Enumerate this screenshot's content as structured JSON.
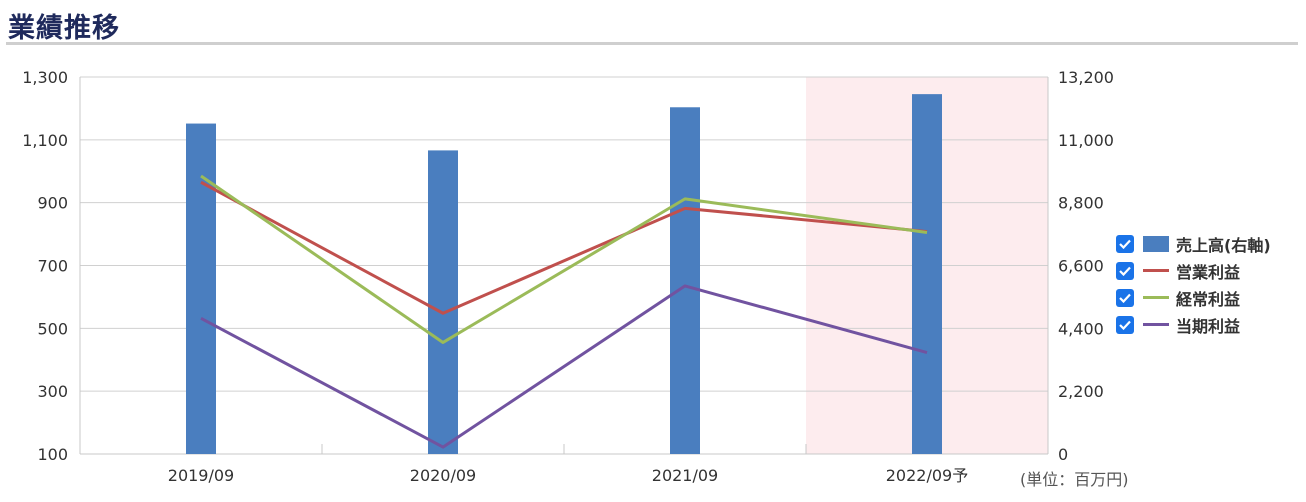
{
  "page": {
    "title": "業績推移",
    "unit_label": "(単位：百万円)"
  },
  "colors": {
    "title": "#1f2a5c",
    "bar": "#4a7ebf",
    "operating": "#c0504d",
    "ordinary": "#9bbb59",
    "net": "#7153a0",
    "forecast_band": "#fdecee",
    "checkbox": "#1a73e8"
  },
  "legend": [
    {
      "label": "売上高(右軸)",
      "kind": "bar",
      "color_key": "bar",
      "checked": true
    },
    {
      "label": "営業利益",
      "kind": "line",
      "color_key": "operating",
      "checked": true
    },
    {
      "label": "経常利益",
      "kind": "line",
      "color_key": "ordinary",
      "checked": true
    },
    {
      "label": "当期利益",
      "kind": "line",
      "color_key": "net",
      "checked": true
    }
  ],
  "chart_data": {
    "type": "bar",
    "categories": [
      "2019/09",
      "2020/09",
      "2021/09",
      "2022/09予"
    ],
    "forecast_category": "2022/09予",
    "left_axis": {
      "min": 100,
      "max": 1300,
      "ticks": [
        100,
        300,
        500,
        700,
        900,
        1100,
        1300
      ],
      "tick_labels": [
        "100",
        "300",
        "500",
        "700",
        "900",
        "1,100",
        "1,300"
      ]
    },
    "right_axis": {
      "min": 0,
      "max": 13200,
      "ticks": [
        0,
        2200,
        4400,
        6600,
        8800,
        11000,
        13200
      ],
      "tick_labels": [
        "0",
        "2,200",
        "4,400",
        "6,600",
        "8,800",
        "11,000",
        "13,200"
      ]
    },
    "grid": true,
    "legend_position": "right",
    "series": [
      {
        "name": "売上高(右軸)",
        "type": "bar",
        "axis": "right",
        "values": [
          11570,
          10630,
          12140,
          12600
        ]
      },
      {
        "name": "営業利益",
        "type": "line",
        "axis": "left",
        "values": [
          965,
          548,
          882,
          808
        ]
      },
      {
        "name": "経常利益",
        "type": "line",
        "axis": "left",
        "values": [
          985,
          455,
          912,
          805
        ]
      },
      {
        "name": "当期利益",
        "type": "line",
        "axis": "left",
        "values": [
          532,
          122,
          635,
          423
        ]
      }
    ]
  }
}
